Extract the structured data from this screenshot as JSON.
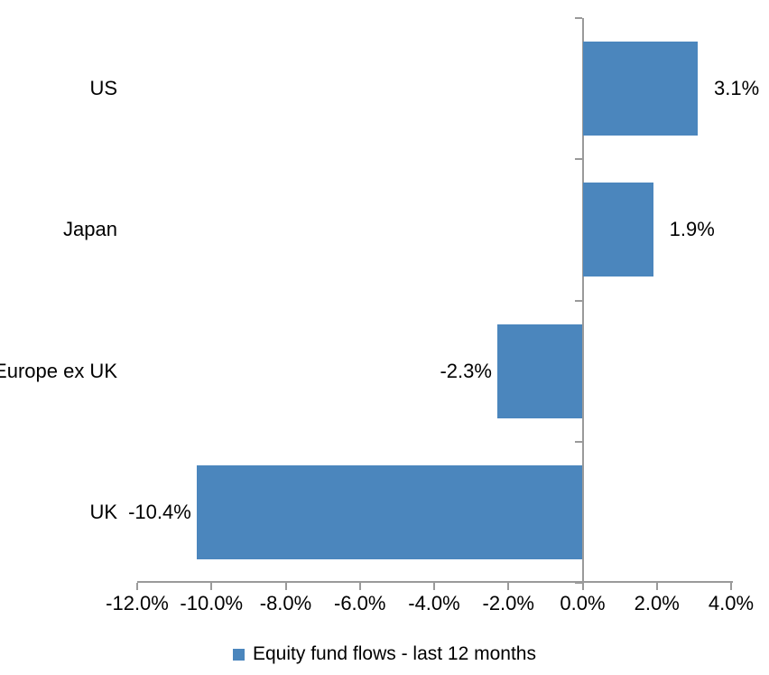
{
  "chart_data": {
    "type": "bar",
    "orientation": "horizontal",
    "title": "",
    "xlabel": "",
    "ylabel": "",
    "grid": false,
    "categories": [
      "US",
      "Japan",
      "Europe ex UK",
      "UK"
    ],
    "series": [
      {
        "name": "Equity fund flows - last 12 months",
        "values": [
          3.1,
          1.9,
          -2.3,
          -10.4
        ],
        "value_labels": [
          "3.1%",
          "1.9%",
          "-2.3%",
          "-10.4%"
        ]
      }
    ],
    "xlim": [
      -12,
      4
    ],
    "x_ticks": [
      -12,
      -10,
      -8,
      -6,
      -4,
      -2,
      0,
      2,
      4
    ],
    "x_tick_labels": [
      "-12.0%",
      "-10.0%",
      "-8.0%",
      "-6.0%",
      "-4.0%",
      "-2.0%",
      "0.0%",
      "2.0%",
      "4.0%"
    ],
    "legend_position": "bottom",
    "colors": {
      "bar": "#4B86BD",
      "axis": "#9A9A9A",
      "text": "#000000",
      "background": "#FFFFFF"
    }
  }
}
